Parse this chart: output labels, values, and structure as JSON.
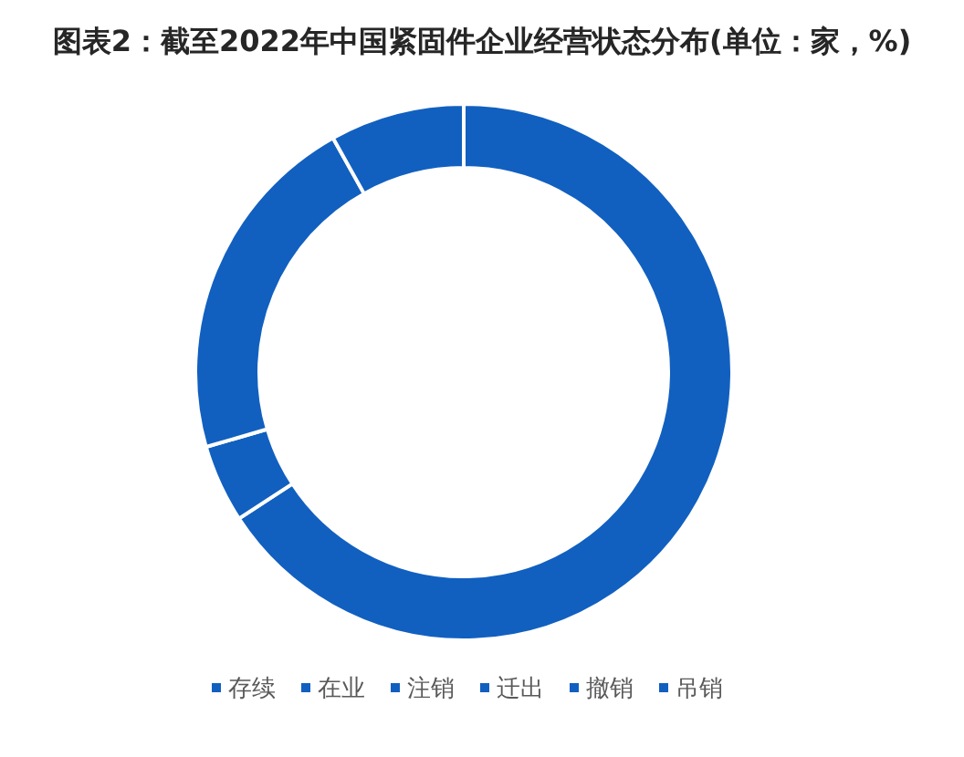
{
  "chart_data": {
    "type": "donut",
    "title": "图表2：截至2022年中国紧固件企业经营状态分布(单位：家，%)",
    "categories": [
      "存续",
      "在业",
      "注销",
      "迁出",
      "撤销",
      "吊销"
    ],
    "values": [
      65.8,
      4.7,
      21.4,
      0,
      0,
      8.1
    ],
    "colors": [
      "#1160c0",
      "#1160c0",
      "#1160c0",
      "#1160c0",
      "#1160c0",
      "#1160c0"
    ],
    "legend": "bottom"
  }
}
